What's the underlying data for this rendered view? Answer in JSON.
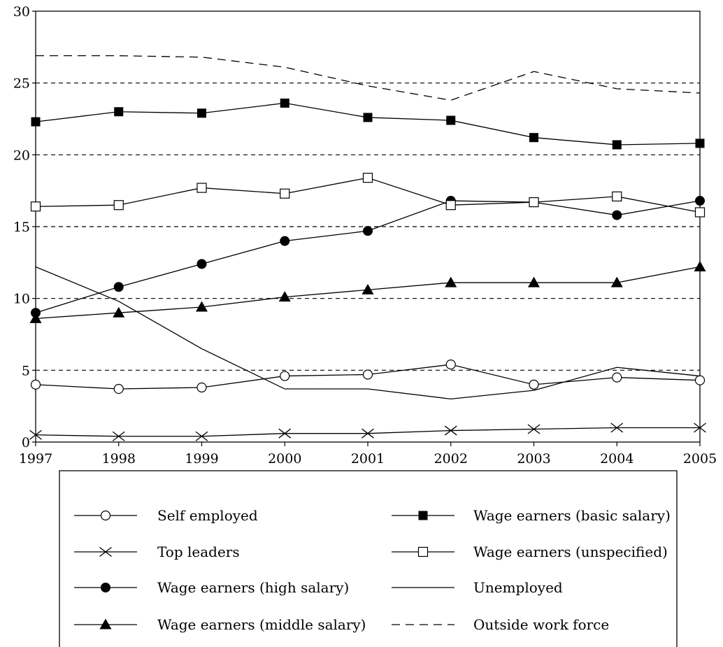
{
  "chart_data": {
    "type": "line",
    "title": "",
    "xlabel": "",
    "ylabel": "",
    "x": [
      1997,
      1998,
      1999,
      2000,
      2001,
      2002,
      2003,
      2004,
      2005
    ],
    "xlim": [
      1997,
      2005
    ],
    "ylim": [
      0,
      30
    ],
    "y_ticks": [
      0,
      5,
      10,
      15,
      20,
      25,
      30
    ],
    "y_tick_labels": [
      "0",
      "5",
      "10",
      "15",
      "20",
      "25",
      "30"
    ],
    "x_tick_labels": [
      "1997",
      "1998",
      "1999",
      "2000",
      "2001",
      "2002",
      "2003",
      "2004",
      "2005"
    ],
    "grid": "horizontal dashed at 5, 10, 15, 20, 25",
    "legend_position": "bottom",
    "series": [
      {
        "name": "Self employed",
        "marker": "open-circle",
        "line": "solid",
        "values": [
          4.0,
          3.7,
          3.8,
          4.6,
          4.7,
          5.4,
          4.0,
          4.5,
          4.3
        ]
      },
      {
        "name": "Top leaders",
        "marker": "x",
        "line": "solid",
        "values": [
          0.5,
          0.4,
          0.4,
          0.6,
          0.6,
          0.8,
          0.9,
          1.0,
          1.0
        ]
      },
      {
        "name": "Wage earners (high salary)",
        "marker": "filled-circle",
        "line": "solid",
        "values": [
          9.0,
          10.8,
          12.4,
          14.0,
          14.7,
          16.8,
          16.7,
          15.8,
          16.8
        ]
      },
      {
        "name": "Wage earners (middle salary)",
        "marker": "filled-triangle",
        "line": "solid",
        "values": [
          8.6,
          9.0,
          9.4,
          10.1,
          10.6,
          11.1,
          11.1,
          11.1,
          12.2
        ]
      },
      {
        "name": "Wage earners (basic salary)",
        "marker": "filled-square",
        "line": "solid",
        "values": [
          22.3,
          23.0,
          22.9,
          23.6,
          22.6,
          22.4,
          21.2,
          20.7,
          20.8
        ]
      },
      {
        "name": "Wage earners (unspecified)",
        "marker": "open-square",
        "line": "solid",
        "values": [
          16.4,
          16.5,
          17.7,
          17.3,
          18.4,
          16.5,
          16.7,
          17.1,
          16.0
        ]
      },
      {
        "name": "Unemployed",
        "marker": "none",
        "line": "solid",
        "values": [
          12.2,
          9.8,
          6.5,
          3.7,
          3.7,
          3.0,
          3.6,
          5.2,
          4.6
        ]
      },
      {
        "name": "Outside work force",
        "marker": "none",
        "line": "dashed",
        "values": [
          26.9,
          26.9,
          26.8,
          26.1,
          24.8,
          23.8,
          25.8,
          24.6,
          24.3
        ]
      }
    ]
  }
}
